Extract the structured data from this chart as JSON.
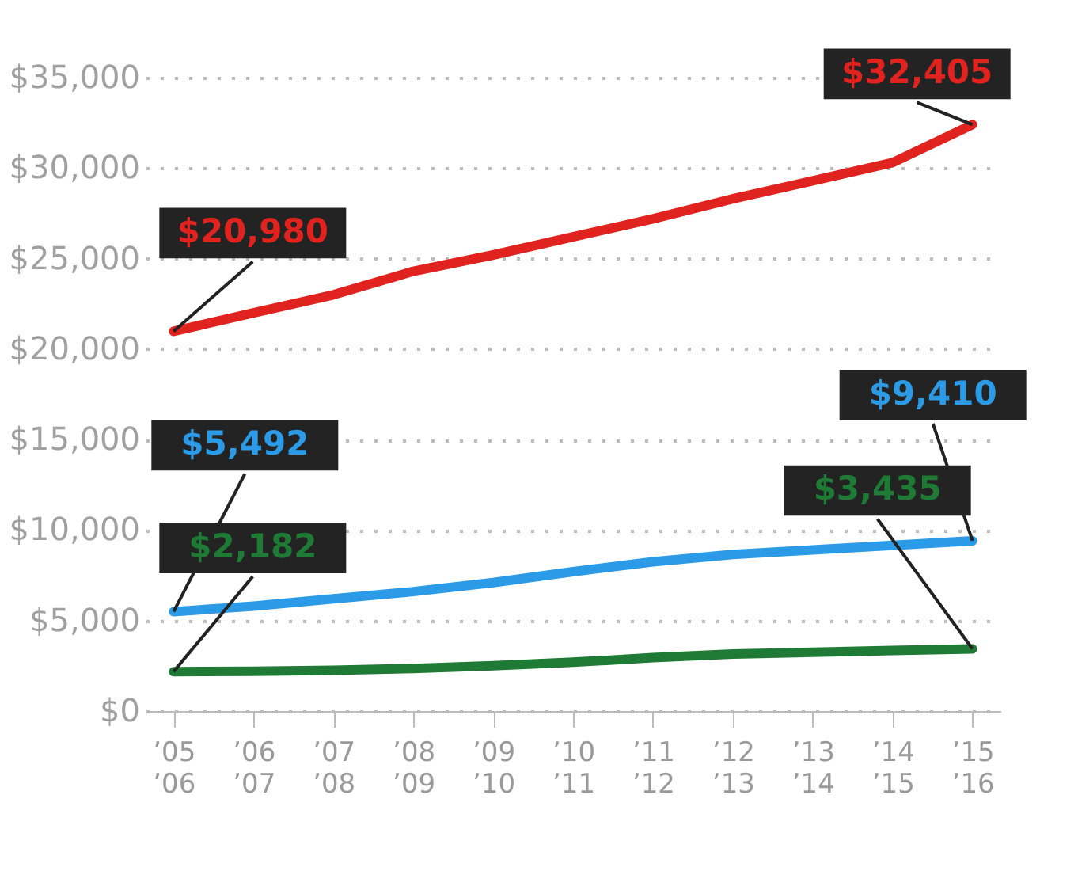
{
  "chart_data": {
    "type": "line",
    "categories": [
      "’05\n’06",
      "’06\n’07",
      "’07\n’08",
      "’08\n’09",
      "’09\n’10",
      "’10\n’11",
      "’11\n’12",
      "’12\n’13",
      "’13\n’14",
      "’14\n’15",
      "’15\n’16"
    ],
    "series": [
      {
        "color": "#e0231e",
        "values": [
          20980,
          22000,
          23000,
          24300,
          25200,
          26200,
          27200,
          28300,
          29300,
          30300,
          32405
        ],
        "value_labels": [
          "$20,980",
          null,
          null,
          null,
          null,
          null,
          null,
          null,
          null,
          null,
          "$32,405"
        ]
      },
      {
        "color": "#2b9be8",
        "values": [
          5492,
          5800,
          6200,
          6600,
          7100,
          7700,
          8250,
          8650,
          8900,
          9150,
          9410
        ],
        "value_labels": [
          "$5,492",
          null,
          null,
          null,
          null,
          null,
          null,
          null,
          null,
          null,
          "$9,410"
        ]
      },
      {
        "color": "#1f7a35",
        "values": [
          2182,
          2200,
          2250,
          2350,
          2500,
          2700,
          2950,
          3150,
          3250,
          3350,
          3435
        ],
        "value_labels": [
          "$2,182",
          null,
          null,
          null,
          null,
          null,
          null,
          null,
          null,
          null,
          "$3,435"
        ]
      }
    ],
    "ylim": [
      0,
      35000
    ],
    "yticks": [
      {
        "value": 0,
        "label": "$0"
      },
      {
        "value": 5000,
        "label": "$5,000"
      },
      {
        "value": 10000,
        "label": "$10,000"
      },
      {
        "value": 15000,
        "label": "$15,000"
      },
      {
        "value": 20000,
        "label": "$20,000"
      },
      {
        "value": 25000,
        "label": "$25,000"
      },
      {
        "value": 30000,
        "label": "$30,000"
      },
      {
        "value": 35000,
        "label": "$35,000"
      }
    ],
    "grid": "y",
    "legend": false,
    "marker": "none",
    "line_style": "solid"
  }
}
